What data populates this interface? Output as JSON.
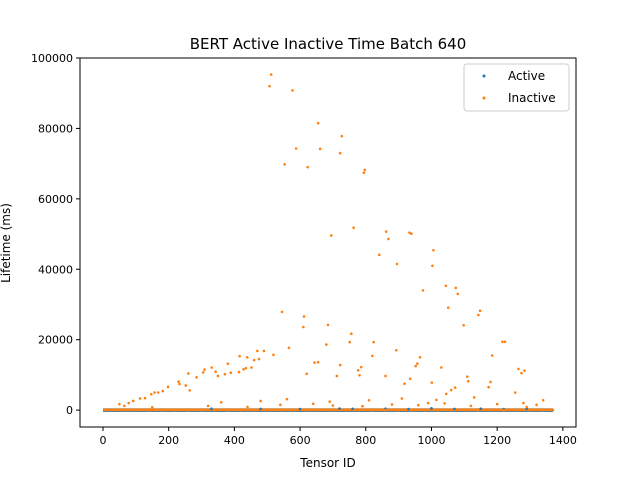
{
  "chart_data": {
    "type": "scatter",
    "title": "BERT Active Inactive Time Batch 640",
    "xlabel": "Tensor ID",
    "ylabel": "Lifetime (ms)",
    "xlim": [
      -70,
      1440
    ],
    "ylim": [
      -4800,
      100000
    ],
    "xticks": [
      0,
      200,
      400,
      600,
      800,
      1000,
      1200,
      1400
    ],
    "yticks": [
      0,
      20000,
      40000,
      60000,
      80000,
      100000
    ],
    "xtick_labels": [
      "0",
      "200",
      "400",
      "600",
      "800",
      "1000",
      "1200",
      "1400"
    ],
    "ytick_labels": [
      "0",
      "20000",
      "40000",
      "60000",
      "80000",
      "100000"
    ],
    "legend_position": "top-right",
    "grid": false,
    "series": [
      {
        "name": "Active",
        "color": "#1f77b4",
        "points": [
          [
            330,
            400
          ],
          [
            480,
            350
          ],
          [
            600,
            300
          ],
          [
            720,
            450
          ],
          [
            760,
            380
          ],
          [
            860,
            420
          ],
          [
            930,
            300
          ],
          [
            1000,
            500
          ],
          [
            1070,
            350
          ],
          [
            1150,
            400
          ],
          [
            1220,
            300
          ],
          [
            1290,
            350
          ]
        ]
      },
      {
        "name": "Inactive",
        "color": "#ff7f0e",
        "points": [
          [
            507,
            92000
          ],
          [
            512,
            95300
          ],
          [
            577,
            90800
          ],
          [
            655,
            81500
          ],
          [
            727,
            77800
          ],
          [
            588,
            74300
          ],
          [
            661,
            74200
          ],
          [
            722,
            73000
          ],
          [
            553,
            69800
          ],
          [
            623,
            69000
          ],
          [
            797,
            68200
          ],
          [
            794,
            67400
          ],
          [
            763,
            51800
          ],
          [
            862,
            50700
          ],
          [
            933,
            50400
          ],
          [
            939,
            50100
          ],
          [
            695,
            49600
          ],
          [
            869,
            48600
          ],
          [
            1006,
            45400
          ],
          [
            841,
            44100
          ],
          [
            895,
            41500
          ],
          [
            1003,
            41000
          ],
          [
            1044,
            35300
          ],
          [
            1074,
            34700
          ],
          [
            974,
            34000
          ],
          [
            1080,
            33000
          ],
          [
            1051,
            29100
          ],
          [
            1148,
            28200
          ],
          [
            1143,
            27000
          ],
          [
            545,
            27900
          ],
          [
            612,
            26600
          ],
          [
            1098,
            24100
          ],
          [
            610,
            23600
          ],
          [
            685,
            24200
          ],
          [
            756,
            21700
          ],
          [
            1224,
            19400
          ],
          [
            1216,
            19400
          ],
          [
            751,
            19300
          ],
          [
            824,
            19300
          ],
          [
            893,
            17000
          ],
          [
            1185,
            15500
          ],
          [
            820,
            15400
          ],
          [
            965,
            15000
          ],
          [
            470,
            16800
          ],
          [
            490,
            16800
          ],
          [
            439,
            15000
          ],
          [
            519,
            15700
          ],
          [
            475,
            14500
          ],
          [
            680,
            18600
          ],
          [
            620,
            10300
          ],
          [
            644,
            13500
          ],
          [
            655,
            13600
          ],
          [
            722,
            12800
          ],
          [
            957,
            13200
          ],
          [
            952,
            12500
          ],
          [
            1030,
            12100
          ],
          [
            1109,
            9500
          ],
          [
            1274,
            10500
          ],
          [
            1283,
            11200
          ],
          [
            1265,
            11700
          ],
          [
            1180,
            8000
          ],
          [
            1174,
            6500
          ],
          [
            1112,
            8200
          ],
          [
            1072,
            6400
          ],
          [
            1001,
            7800
          ],
          [
            918,
            7500
          ],
          [
            935,
            8900
          ],
          [
            860,
            9700
          ],
          [
            781,
            9900
          ],
          [
            712,
            9700
          ],
          [
            777,
            11300
          ],
          [
            786,
            12200
          ],
          [
            566,
            17700
          ],
          [
            414,
            10800
          ],
          [
            435,
            11900
          ],
          [
            371,
            10200
          ],
          [
            389,
            10600
          ],
          [
            380,
            13200
          ],
          [
            343,
            10900
          ],
          [
            331,
            12100
          ],
          [
            350,
            9700
          ],
          [
            305,
            10700
          ],
          [
            309,
            11500
          ],
          [
            285,
            9300
          ],
          [
            260,
            10400
          ],
          [
            233,
            7400
          ],
          [
            230,
            8100
          ],
          [
            198,
            6600
          ],
          [
            182,
            5400
          ],
          [
            168,
            5000
          ],
          [
            157,
            5000
          ],
          [
            147,
            4500
          ],
          [
            128,
            3400
          ],
          [
            113,
            3300
          ],
          [
            92,
            2600
          ],
          [
            78,
            2000
          ],
          [
            65,
            1200
          ],
          [
            50,
            1700
          ],
          [
            416,
            15300
          ],
          [
            428,
            11600
          ],
          [
            460,
            14200
          ],
          [
            452,
            12100
          ],
          [
            252,
            7000
          ],
          [
            264,
            5600
          ],
          [
            1060,
            5700
          ],
          [
            1045,
            4600
          ],
          [
            1015,
            2900
          ],
          [
            1255,
            5000
          ],
          [
            1280,
            2000
          ],
          [
            1320,
            1500
          ],
          [
            1340,
            2800
          ],
          [
            20,
            0
          ],
          [
            60,
            0
          ],
          [
            100,
            0
          ],
          [
            140,
            0
          ],
          [
            180,
            0
          ],
          [
            220,
            0
          ],
          [
            260,
            0
          ],
          [
            300,
            0
          ],
          [
            340,
            0
          ],
          [
            380,
            0
          ],
          [
            420,
            0
          ],
          [
            460,
            0
          ],
          [
            500,
            0
          ],
          [
            540,
            0
          ],
          [
            580,
            0
          ],
          [
            620,
            0
          ],
          [
            660,
            0
          ],
          [
            700,
            0
          ],
          [
            740,
            0
          ],
          [
            780,
            0
          ],
          [
            820,
            0
          ],
          [
            860,
            0
          ],
          [
            900,
            0
          ],
          [
            940,
            0
          ],
          [
            980,
            0
          ],
          [
            1020,
            0
          ],
          [
            1060,
            0
          ],
          [
            1100,
            0
          ],
          [
            1140,
            0
          ],
          [
            1180,
            0
          ],
          [
            1220,
            0
          ],
          [
            1260,
            0
          ],
          [
            1300,
            0
          ],
          [
            1340,
            0
          ],
          [
            1370,
            0
          ],
          [
            150,
            800
          ],
          [
            320,
            1200
          ],
          [
            440,
            900
          ],
          [
            540,
            1500
          ],
          [
            640,
            1800
          ],
          [
            700,
            1300
          ],
          [
            790,
            1100
          ],
          [
            880,
            1600
          ],
          [
            960,
            1400
          ],
          [
            1040,
            1900
          ],
          [
            1120,
            1200
          ],
          [
            1200,
            1700
          ],
          [
            1290,
            900
          ],
          [
            360,
            2200
          ],
          [
            480,
            2600
          ],
          [
            560,
            3100
          ],
          [
            690,
            2400
          ],
          [
            810,
            2800
          ],
          [
            910,
            3300
          ],
          [
            990,
            2000
          ],
          [
            1130,
            3600
          ]
        ]
      }
    ]
  }
}
